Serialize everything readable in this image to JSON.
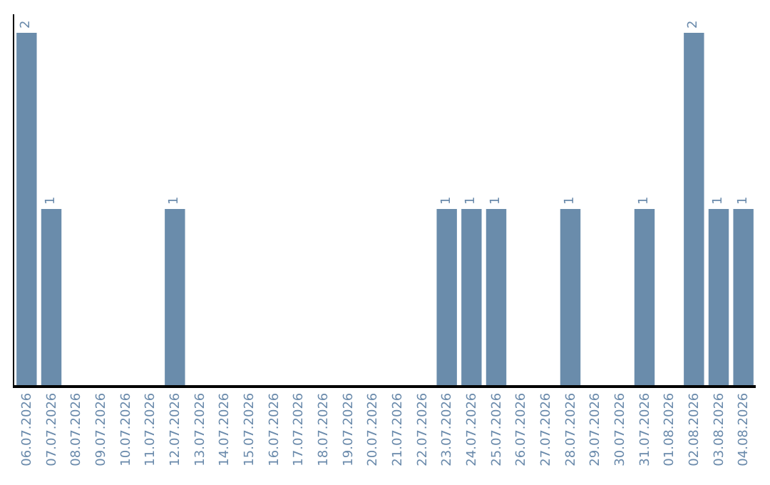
{
  "chart_data": {
    "type": "bar",
    "categories": [
      "06.07.2026",
      "07.07.2026",
      "08.07.2026",
      "09.07.2026",
      "10.07.2026",
      "11.07.2026",
      "12.07.2026",
      "13.07.2026",
      "14.07.2026",
      "15.07.2026",
      "16.07.2026",
      "17.07.2026",
      "18.07.2026",
      "19.07.2026",
      "20.07.2026",
      "21.07.2026",
      "22.07.2026",
      "23.07.2026",
      "24.07.2026",
      "25.07.2026",
      "26.07.2026",
      "27.07.2026",
      "28.07.2026",
      "29.07.2026",
      "30.07.2026",
      "31.07.2026",
      "01.08.2026",
      "02.08.2026",
      "03.08.2026",
      "04.08.2026"
    ],
    "values": [
      2,
      1,
      0,
      0,
      0,
      0,
      1,
      0,
      0,
      0,
      0,
      0,
      0,
      0,
      0,
      0,
      0,
      1,
      1,
      1,
      0,
      0,
      1,
      0,
      0,
      1,
      0,
      2,
      1,
      1
    ],
    "value_labels": [
      "2",
      "1",
      null,
      null,
      null,
      null,
      "1",
      null,
      null,
      null,
      null,
      null,
      null,
      null,
      null,
      null,
      null,
      "1",
      "1",
      "1",
      null,
      null,
      "1",
      null,
      null,
      "1",
      null,
      "2",
      "1",
      "1"
    ],
    "color": "#6a8cab"
  }
}
